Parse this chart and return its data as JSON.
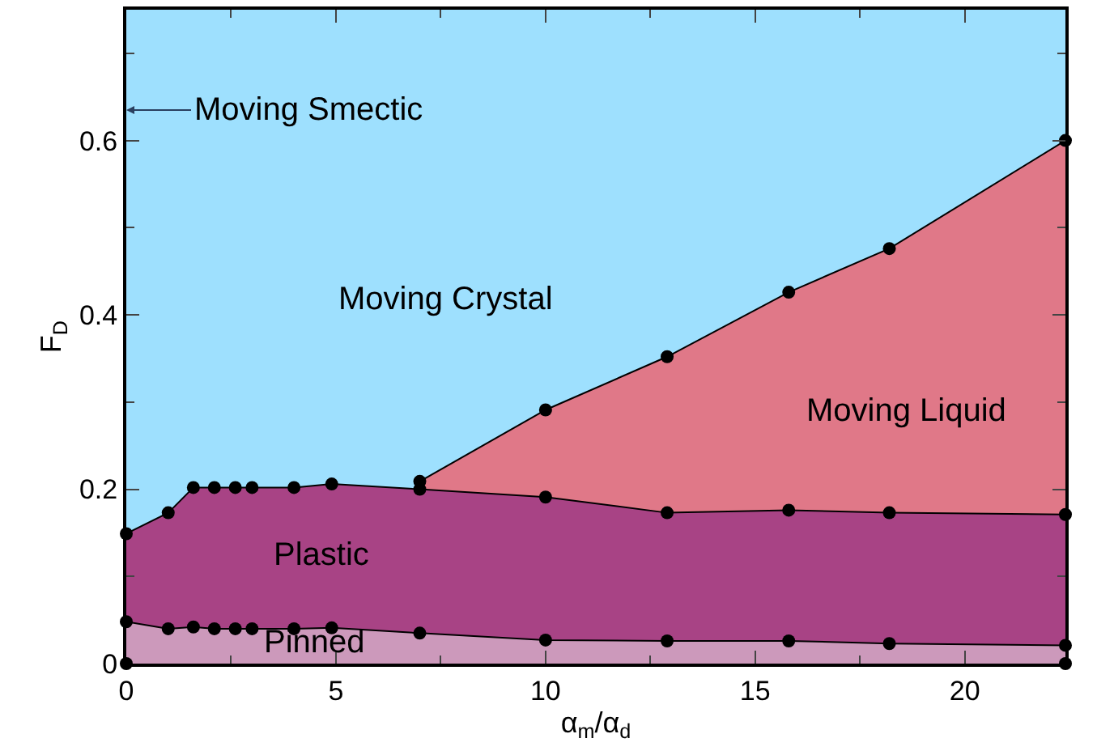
{
  "chart_data": {
    "type": "area",
    "xlabel": "α$_{m}$/α$_{d}$",
    "ylabel": "F$_{D}$",
    "xlim": [
      0,
      22.4
    ],
    "ylim": [
      0,
      0.75
    ],
    "xticks": [
      0,
      5,
      10,
      15,
      20
    ],
    "yticks": [
      0,
      0.2,
      0.4,
      0.6
    ],
    "grid": false,
    "marker": "circle",
    "line_style": "solid",
    "bands": [
      {
        "axis": "y",
        "from": 0,
        "to": 0.75,
        "color": "#9ee0fe"
      }
    ],
    "series": [
      {
        "color": "#e07888",
        "x": [
          7,
          10,
          12.9,
          15.8,
          18.2,
          22.4
        ],
        "values": [
          0.209,
          0.291,
          0.352,
          0.426,
          0.476,
          0.6
        ]
      },
      {
        "color": "#a84385",
        "x": [
          0,
          1,
          1.6,
          2.1,
          2.6,
          3,
          4,
          4.9,
          7,
          10,
          12.9,
          15.8,
          18.2,
          22.4
        ],
        "values": [
          0.149,
          0.173,
          0.202,
          0.202,
          0.202,
          0.202,
          0.202,
          0.206,
          0.2,
          0.191,
          0.173,
          0.176,
          0.173,
          0.171
        ]
      },
      {
        "color": "#cc99bb",
        "x": [
          0,
          1,
          1.6,
          2.1,
          2.6,
          3,
          4,
          4.9,
          7,
          10,
          12.9,
          15.8,
          18.2,
          22.4
        ],
        "values": [
          0.048,
          0.04,
          0.042,
          0.04,
          0.04,
          0.04,
          0.04,
          0.041,
          0.035,
          0.027,
          0.026,
          0.026,
          0.023,
          0.021
        ]
      },
      {
        "type": "scatter",
        "color": "#000000",
        "x": [
          0,
          22.4
        ],
        "values": [
          0,
          0
        ]
      }
    ],
    "annotations": [
      {
        "text": "Moving Smectic",
        "x": 0,
        "y": 0.635
      },
      "Moving Crystal",
      "Moving Liquid",
      "Plastic",
      "Pinned"
    ]
  }
}
